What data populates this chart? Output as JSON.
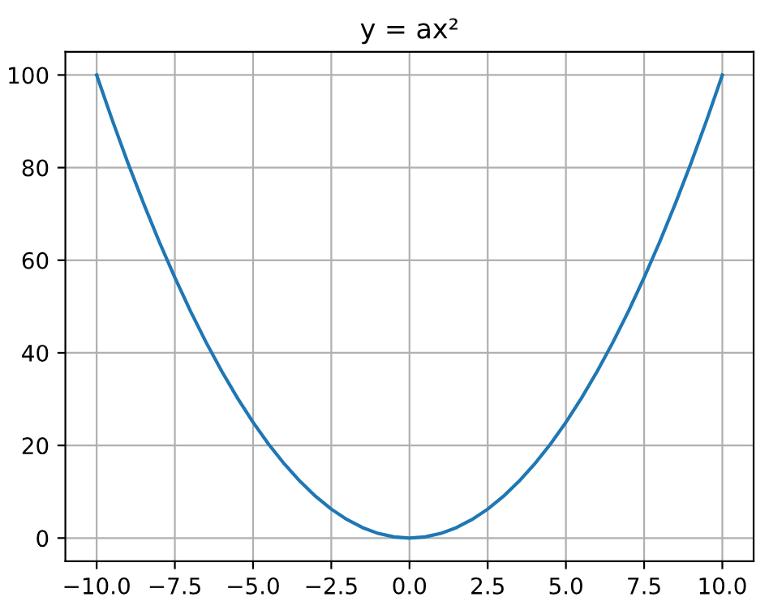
{
  "chart_data": {
    "type": "line",
    "title": "y = ax²",
    "x": [
      -10,
      -9.5,
      -9,
      -8.5,
      -8,
      -7.5,
      -7,
      -6.5,
      -6,
      -5.5,
      -5,
      -4.5,
      -4,
      -3.5,
      -3,
      -2.5,
      -2,
      -1.5,
      -1,
      -0.5,
      0,
      0.5,
      1,
      1.5,
      2,
      2.5,
      3,
      3.5,
      4,
      4.5,
      5,
      5.5,
      6,
      6.5,
      7,
      7.5,
      8,
      8.5,
      9,
      9.5,
      10
    ],
    "series": [
      {
        "color": "#1f77b4",
        "values": [
          100,
          90.25,
          81,
          72.25,
          64,
          56.25,
          49,
          42.25,
          36,
          30.25,
          25,
          20.25,
          16,
          12.25,
          9,
          6.25,
          4,
          2.25,
          1,
          0.25,
          0,
          0.25,
          1,
          2.25,
          4,
          6.25,
          9,
          12.25,
          16,
          20.25,
          25,
          30.25,
          36,
          42.25,
          49,
          56.25,
          64,
          72.25,
          81,
          90.25,
          100
        ]
      }
    ],
    "xlim": [
      -11,
      11
    ],
    "ylim": [
      -5,
      105
    ],
    "xticks": [
      {
        "value": -10,
        "label": "−10.0"
      },
      {
        "value": -7.5,
        "label": "−7.5"
      },
      {
        "value": -5,
        "label": "−5.0"
      },
      {
        "value": -2.5,
        "label": "−2.5"
      },
      {
        "value": 0,
        "label": "0.0"
      },
      {
        "value": 2.5,
        "label": "2.5"
      },
      {
        "value": 5,
        "label": "5.0"
      },
      {
        "value": 7.5,
        "label": "7.5"
      },
      {
        "value": 10,
        "label": "10.0"
      }
    ],
    "yticks": [
      0,
      20,
      40,
      60,
      80,
      100
    ],
    "grid": true,
    "marker": "none",
    "line_style": "solid"
  }
}
